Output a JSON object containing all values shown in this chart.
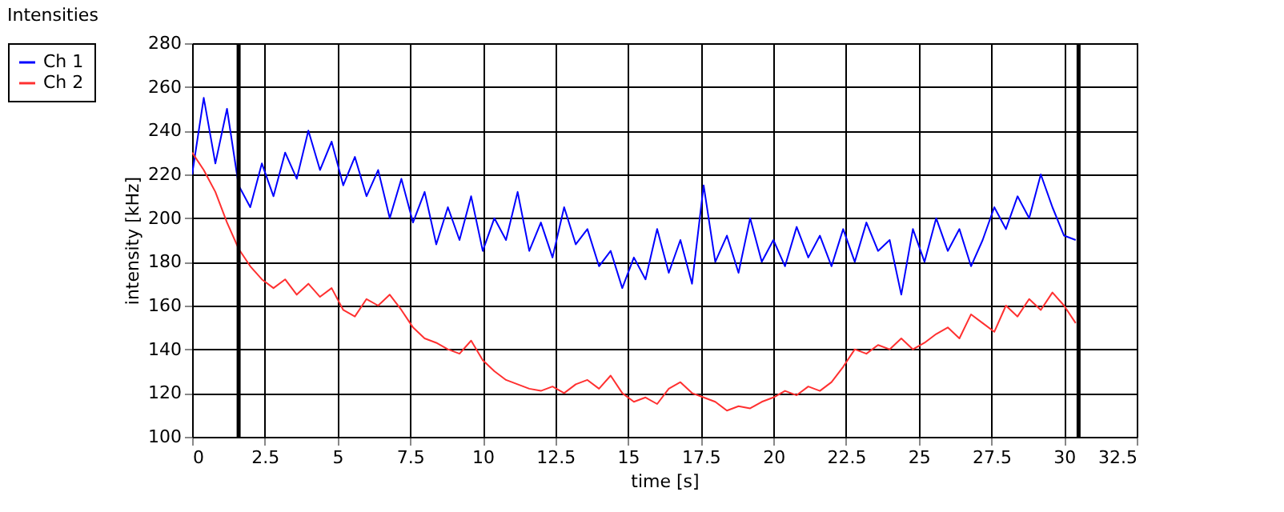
{
  "chart_data": {
    "type": "line",
    "title": "Intensities",
    "xlabel": "time [s]",
    "ylabel": "intensity [kHz]",
    "x": [
      0,
      0.4,
      0.8,
      1.2,
      1.6,
      2.0,
      2.4,
      2.8,
      3.2,
      3.6,
      4.0,
      4.4,
      4.8,
      5.2,
      5.6,
      6.0,
      6.4,
      6.8,
      7.2,
      7.6,
      8.0,
      8.4,
      8.8,
      9.2,
      9.6,
      10.0,
      10.4,
      10.8,
      11.2,
      11.6,
      12.0,
      12.4,
      12.8,
      13.2,
      13.6,
      14.0,
      14.4,
      14.8,
      15.2,
      15.6,
      16.0,
      16.4,
      16.8,
      17.2,
      17.6,
      18.0,
      18.4,
      18.8,
      19.2,
      19.6,
      20.0,
      20.4,
      20.8,
      21.2,
      21.6,
      22.0,
      22.4,
      22.8,
      23.2,
      23.6,
      24.0,
      24.4,
      24.8,
      25.2,
      25.6,
      26.0,
      26.4,
      26.8,
      27.2,
      27.6,
      28.0,
      28.4,
      28.8,
      29.2,
      29.6,
      30.0,
      30.4
    ],
    "series": [
      {
        "name": "Ch 1",
        "color": "#0000ff",
        "values": [
          220,
          255,
          225,
          250,
          215,
          205,
          225,
          210,
          230,
          218,
          240,
          222,
          235,
          215,
          228,
          210,
          222,
          200,
          218,
          198,
          212,
          188,
          205,
          190,
          210,
          185,
          200,
          190,
          212,
          185,
          198,
          182,
          205,
          188,
          195,
          178,
          185,
          168,
          182,
          172,
          195,
          175,
          190,
          170,
          215,
          180,
          192,
          175,
          200,
          180,
          190,
          178,
          196,
          182,
          192,
          178,
          195,
          180,
          198,
          185,
          190,
          165,
          195,
          180,
          200,
          185,
          195,
          178,
          190,
          205,
          195,
          210,
          200,
          220,
          205,
          192,
          190
        ]
      },
      {
        "name": "Ch 2",
        "color": "#ff3030",
        "values": [
          230,
          222,
          212,
          198,
          186,
          178,
          172,
          168,
          172,
          165,
          170,
          164,
          168,
          158,
          155,
          163,
          160,
          165,
          158,
          150,
          145,
          143,
          140,
          138,
          144,
          135,
          130,
          126,
          124,
          122,
          121,
          123,
          120,
          124,
          126,
          122,
          128,
          120,
          116,
          118,
          115,
          122,
          125,
          120,
          118,
          116,
          112,
          114,
          113,
          116,
          118,
          121,
          119,
          123,
          121,
          125,
          132,
          140,
          138,
          142,
          140,
          145,
          140,
          143,
          147,
          150,
          145,
          156,
          152,
          148,
          160,
          155,
          163,
          158,
          166,
          160,
          152
        ]
      }
    ],
    "xlim": [
      0,
      32.5
    ],
    "xticks": [
      0,
      2.5,
      5,
      7.5,
      10,
      12.5,
      15,
      17.5,
      20,
      22.5,
      25,
      27.5,
      30,
      32.5
    ],
    "ylim": [
      100,
      280
    ],
    "yticks": [
      100,
      120,
      140,
      160,
      180,
      200,
      220,
      240,
      260,
      280
    ],
    "ref_lines": [
      {
        "axis": "x",
        "value": 1.6,
        "color": "#000000"
      },
      {
        "axis": "x",
        "value": 30.5,
        "color": "#000000"
      }
    ],
    "grid": true,
    "legend": "top left",
    "line_style": "solid",
    "marker": "none"
  }
}
